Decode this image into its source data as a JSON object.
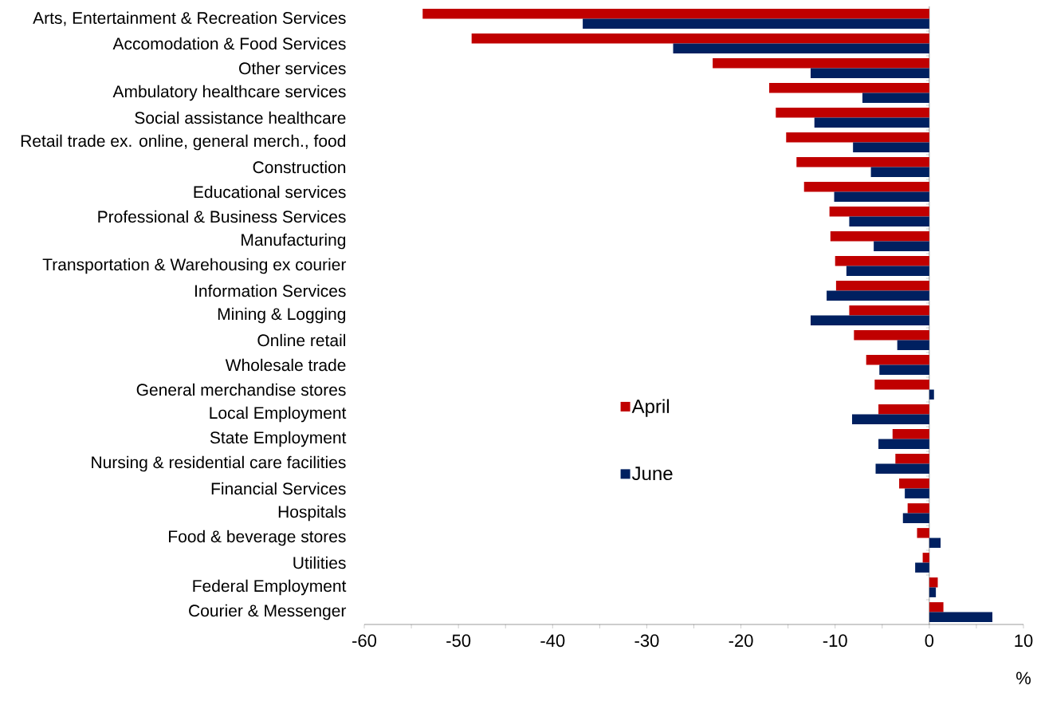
{
  "chart_data": {
    "type": "bar",
    "orientation": "horizontal",
    "xlabel": "%",
    "categories": [
      "Arts, Entertainment & Recreation Services",
      "Accomodation & Food Services",
      "Other services",
      "Ambulatory healthcare services",
      "Social assistance healthcare",
      "Retail trade ex. online, general merch., food",
      "Construction",
      "Educational services",
      "Professional & Business Services",
      "Manufacturing",
      "Transportation & Warehousing ex courier",
      "Information Services",
      "Mining & Logging",
      "Online retail",
      "Wholesale trade",
      "General merchandise stores",
      "Local Employment",
      "State Employment",
      "Nursing & residential care facilities",
      "Financial Services",
      "Hospitals",
      "Food & beverage stores",
      "Utilities",
      "Federal Employment",
      "Courier & Messenger"
    ],
    "series": [
      {
        "name": "April",
        "color": "#c00000",
        "values": [
          -53.8,
          -48.6,
          -23.0,
          -17.0,
          -16.3,
          -15.2,
          -14.1,
          -13.3,
          -10.6,
          -10.5,
          -10.0,
          -9.9,
          -8.5,
          -8.0,
          -6.7,
          -5.8,
          -5.4,
          -3.9,
          -3.6,
          -3.2,
          -2.3,
          -1.3,
          -0.7,
          0.9,
          1.5
        ]
      },
      {
        "name": "June",
        "color": "#002060",
        "values": [
          -36.8,
          -27.2,
          -12.6,
          -7.1,
          -12.2,
          -8.1,
          -6.2,
          -10.1,
          -8.5,
          -5.9,
          -8.8,
          -10.9,
          -12.6,
          -3.4,
          -5.3,
          0.5,
          -8.2,
          -5.4,
          -5.7,
          -2.6,
          -2.8,
          1.2,
          -1.5,
          0.7,
          6.7
        ]
      }
    ],
    "xlim": [
      -60,
      10
    ],
    "xticks": [
      -60,
      {
        "value": -55,
        "label": null
      },
      -50,
      {
        "value": -45,
        "label": null
      },
      -40,
      {
        "value": -35,
        "label": null
      },
      -30,
      {
        "value": -25,
        "label": null
      },
      -20,
      {
        "value": -15,
        "label": null
      },
      -10,
      {
        "value": -5,
        "label": null
      },
      0,
      {
        "value": 5,
        "label": null
      },
      10
    ],
    "legend": "center"
  }
}
